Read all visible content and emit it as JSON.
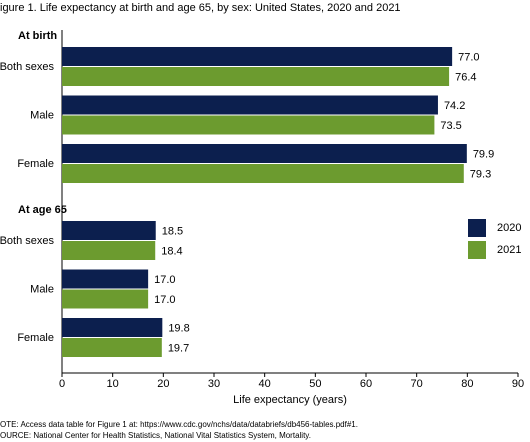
{
  "chart_data": {
    "type": "bar",
    "orientation": "horizontal",
    "title": "igure 1. Life expectancy at birth and age 65, by sex: United States, 2020 and 2021",
    "groups": [
      "At birth",
      "At age 65"
    ],
    "categories": [
      "Both sexes",
      "Male",
      "Female",
      "Both sexes",
      "Male",
      "Female"
    ],
    "series": [
      {
        "name": "2020",
        "color": "#0c1f4e",
        "values": [
          77.0,
          74.2,
          79.9,
          18.5,
          17.0,
          19.8
        ],
        "value_labels": [
          "77.0",
          "74.2",
          "79.9",
          "18.5",
          "17.0",
          "19.8"
        ]
      },
      {
        "name": "2021",
        "color": "#6c9b2f",
        "values": [
          76.4,
          73.5,
          79.3,
          18.4,
          17.0,
          19.7
        ],
        "value_labels": [
          "76.4",
          "73.5",
          "79.3",
          "18.4",
          "17.0",
          "19.7"
        ]
      }
    ],
    "xlabel": "Life expectancy (years)",
    "xlim": [
      0,
      90
    ],
    "xticks": [
      0,
      10,
      20,
      30,
      40,
      50,
      60,
      70,
      80,
      90
    ],
    "grid": false,
    "legend_position": "right",
    "notes": [
      "OTE: Access data table for Figure 1 at: https://www.cdc.gov/nchs/data/databriefs/db456-tables.pdf#1.",
      "OURCE: National Center for Health Statistics, National Vital Statistics System, Mortality."
    ]
  }
}
